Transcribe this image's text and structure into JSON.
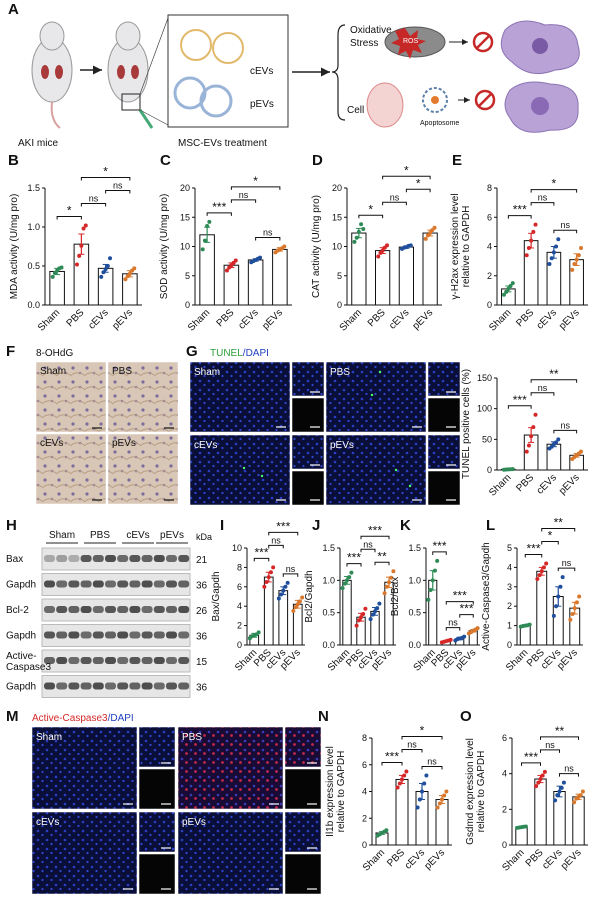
{
  "panel_letters": [
    "A",
    "B",
    "C",
    "D",
    "E",
    "F",
    "G",
    "H",
    "I",
    "J",
    "K",
    "L",
    "M",
    "N",
    "O"
  ],
  "schematic": {
    "mouse_label": "AKI mice",
    "treatment_label": "MSC-EVs treatment",
    "ev_labels": [
      "cEVs",
      "pEVs"
    ],
    "oxidative_stress": [
      "Oxidative",
      "Stress"
    ],
    "cell_death": "Cell death",
    "ros": "ROS",
    "apoptosome": "Apoptosome"
  },
  "micrographs_F": {
    "title": "8-OHdG",
    "labels": [
      "Sham",
      "PBS",
      "cEVs",
      "pEVs"
    ]
  },
  "micrographs_G": {
    "title": [
      "TUNEL",
      "/DAPI"
    ],
    "labels": [
      "Sham",
      "PBS",
      "cEVs",
      "pEVs"
    ]
  },
  "micrographs_M": {
    "title": [
      "Active-Caspase3",
      "/DAPI"
    ],
    "labels": [
      "Sham",
      "PBS",
      "cEVs",
      "pEVs"
    ]
  },
  "western_blot": {
    "lanes": [
      "Sham",
      "PBS",
      "cEVs",
      "pEVs"
    ],
    "unit": "kDa",
    "rows": [
      {
        "label": [
          "Bax"
        ],
        "kda": 21
      },
      {
        "label": [
          "Gapdh"
        ],
        "kda": 36
      },
      {
        "label": [
          "Bcl-2"
        ],
        "kda": 26
      },
      {
        "label": [
          "Gapdh"
        ],
        "kda": 36
      },
      {
        "label": [
          "Active-",
          "Caspase3"
        ],
        "kda": 15
      },
      {
        "label": [
          "Gapdh"
        ],
        "kda": 36
      }
    ]
  },
  "chart_data": [
    {
      "type": "bar",
      "ylabel": [
        "MDA activity (U/mg pro)"
      ],
      "categories": [
        "Sham",
        "PBS",
        "cEVs",
        "pEVs"
      ],
      "colors": [
        "#2e8b57",
        "#d62728",
        "#1f4e9c",
        "#d9782d"
      ],
      "values": [
        0.43,
        0.78,
        0.47,
        0.4
      ],
      "errors": [
        0.04,
        0.13,
        0.05,
        0.04
      ],
      "points": [
        [
          0.36,
          0.41,
          0.44,
          0.47,
          0.48
        ],
        [
          0.52,
          0.63,
          0.76,
          0.98,
          1.02
        ],
        [
          0.36,
          0.42,
          0.46,
          0.5,
          0.6
        ],
        [
          0.33,
          0.37,
          0.4,
          0.44,
          0.47
        ]
      ],
      "ylim": [
        0,
        1.5
      ],
      "yticks": [
        {
          "value": 0,
          "label": "0.0"
        },
        0.5,
        {
          "value": 1,
          "label": "1.0"
        },
        1.5
      ],
      "comparisons": [
        {
          "from": "Sham",
          "to": "PBS",
          "label": "*"
        },
        {
          "from": "PBS",
          "to": "cEVs",
          "label": "ns"
        },
        {
          "from": "cEVs",
          "to": "pEVs",
          "label": "ns"
        },
        {
          "from": "PBS",
          "to": "pEVs",
          "label": "*"
        }
      ]
    },
    {
      "type": "bar",
      "ylabel": [
        "SOD activity (U/mg pro)"
      ],
      "categories": [
        "Sham",
        "PBS",
        "cEVs",
        "pEVs"
      ],
      "colors": [
        "#2e8b57",
        "#d62728",
        "#1f4e9c",
        "#d9782d"
      ],
      "values": [
        12.0,
        6.8,
        7.7,
        9.5
      ],
      "errors": [
        1.3,
        0.4,
        0.2,
        0.3
      ],
      "points": [
        [
          9.5,
          11.0,
          13.5,
          14.2
        ],
        [
          5.9,
          6.4,
          6.8,
          7.2,
          7.6
        ],
        [
          7.3,
          7.5,
          7.7,
          7.9,
          8.1
        ],
        [
          9.0,
          9.3,
          9.5,
          9.7,
          10.0
        ]
      ],
      "ylim": [
        0,
        20
      ],
      "yticks": [
        0,
        5,
        10,
        15,
        20
      ],
      "comparisons": [
        {
          "from": "Sham",
          "to": "PBS",
          "label": "***"
        },
        {
          "from": "cEVs",
          "to": "pEVs",
          "label": "ns"
        },
        {
          "from": "PBS",
          "to": "cEVs",
          "label": "ns"
        },
        {
          "from": "PBS",
          "to": "pEVs",
          "label": "*"
        }
      ]
    },
    {
      "type": "bar",
      "ylabel": [
        "CAT activity (U/mg pro)"
      ],
      "categories": [
        "Sham",
        "PBS",
        "cEVs",
        "pEVs"
      ],
      "colors": [
        "#2e8b57",
        "#d62728",
        "#1f4e9c",
        "#d9782d"
      ],
      "values": [
        12.3,
        9.3,
        9.9,
        12.3
      ],
      "errors": [
        0.8,
        0.5,
        0.2,
        0.5
      ],
      "points": [
        [
          10.8,
          11.5,
          12.5,
          13.8,
          13.0
        ],
        [
          8.3,
          8.9,
          9.3,
          9.8,
          10.2
        ],
        [
          9.6,
          9.8,
          9.9,
          10.1,
          10.2
        ],
        [
          11.3,
          11.9,
          12.3,
          12.8,
          13.2
        ]
      ],
      "ylim": [
        0,
        20
      ],
      "yticks": [
        0,
        5,
        10,
        15,
        20
      ],
      "comparisons": [
        {
          "from": "Sham",
          "to": "PBS",
          "label": "*"
        },
        {
          "from": "PBS",
          "to": "cEVs",
          "label": "ns"
        },
        {
          "from": "cEVs",
          "to": "pEVs",
          "label": "*"
        },
        {
          "from": "PBS",
          "to": "pEVs",
          "label": "*"
        }
      ]
    },
    {
      "type": "bar",
      "ylabel": [
        "γ-H2ax expression level",
        "relative to GAPDH"
      ],
      "categories": [
        "Sham",
        "PBS",
        "cEVs",
        "pEVs"
      ],
      "colors": [
        "#2e8b57",
        "#d62728",
        "#1f4e9c",
        "#d9782d"
      ],
      "values": [
        1.1,
        4.4,
        3.6,
        3.1
      ],
      "errors": [
        0.2,
        0.5,
        0.4,
        0.4
      ],
      "points": [
        [
          0.7,
          0.9,
          1.1,
          1.3,
          1.5
        ],
        [
          3.4,
          3.9,
          4.4,
          5.0,
          5.5
        ],
        [
          2.8,
          3.2,
          3.6,
          4.0,
          4.5
        ],
        [
          2.4,
          2.8,
          3.1,
          3.4,
          3.9
        ]
      ],
      "ylim": [
        0,
        8
      ],
      "yticks": [
        0,
        2,
        4,
        6,
        8
      ],
      "comparisons": [
        {
          "from": "Sham",
          "to": "PBS",
          "label": "***"
        },
        {
          "from": "cEVs",
          "to": "pEVs",
          "label": "ns"
        },
        {
          "from": "PBS",
          "to": "cEVs",
          "label": "ns"
        },
        {
          "from": "PBS",
          "to": "pEVs",
          "label": "*"
        }
      ]
    },
    {
      "type": "bar",
      "ylabel": [
        "TUNEL positive cells (%)"
      ],
      "categories": [
        "Sham",
        "PBS",
        "cEVs",
        "pEVs"
      ],
      "colors": [
        "#2e8b57",
        "#d62728",
        "#1f4e9c",
        "#d9782d"
      ],
      "values": [
        1,
        57,
        42,
        24
      ],
      "errors": [
        0.5,
        12,
        4,
        3
      ],
      "points": [
        [
          0.5,
          0.8,
          1,
          1.2,
          1.5
        ],
        [
          30,
          40,
          55,
          70,
          90
        ],
        [
          35,
          38,
          42,
          45,
          50
        ],
        [
          18,
          21,
          24,
          27,
          30
        ]
      ],
      "ylim": [
        0,
        150
      ],
      "yticks": [
        0,
        50,
        100,
        150
      ],
      "comparisons": [
        {
          "from": "Sham",
          "to": "PBS",
          "label": "***"
        },
        {
          "from": "cEVs",
          "to": "pEVs",
          "label": "ns"
        },
        {
          "from": "PBS",
          "to": "cEVs",
          "label": "ns"
        },
        {
          "from": "PBS",
          "to": "pEVs",
          "label": "**"
        }
      ]
    },
    {
      "type": "bar",
      "ylabel": [
        "Bax/Gapdh"
      ],
      "categories": [
        "Sham",
        "PBS",
        "cEVs",
        "pEVs"
      ],
      "colors": [
        "#2e8b57",
        "#d62728",
        "#1f4e9c",
        "#d9782d"
      ],
      "values": [
        1.0,
        7.0,
        5.6,
        4.2
      ],
      "errors": [
        0.2,
        0.5,
        0.4,
        0.4
      ],
      "points": [
        [
          0.7,
          0.9,
          1.0,
          1.1,
          1.3
        ],
        [
          6.0,
          6.5,
          7.0,
          7.5,
          8.0
        ],
        [
          4.8,
          5.2,
          5.6,
          6.0,
          6.4
        ],
        [
          3.5,
          3.9,
          4.2,
          4.5,
          4.9
        ]
      ],
      "ylim": [
        0,
        10
      ],
      "yticks": [
        0,
        2,
        4,
        6,
        8,
        10
      ],
      "comparisons": [
        {
          "from": "Sham",
          "to": "PBS",
          "label": "***"
        },
        {
          "from": "cEVs",
          "to": "pEVs",
          "label": "ns"
        },
        {
          "from": "PBS",
          "to": "cEVs",
          "label": "ns"
        },
        {
          "from": "PBS",
          "to": "pEVs",
          "label": "***"
        }
      ]
    },
    {
      "type": "bar",
      "ylabel": [
        "Bcl2/Gapdh"
      ],
      "categories": [
        "Sham",
        "PBS",
        "cEVs",
        "pEVs"
      ],
      "colors": [
        "#2e8b57",
        "#d62728",
        "#1f4e9c",
        "#d9782d"
      ],
      "values": [
        1.0,
        0.43,
        0.52,
        0.97
      ],
      "errors": [
        0.06,
        0.06,
        0.06,
        0.08
      ],
      "points": [
        [
          0.88,
          0.95,
          1.0,
          1.05,
          1.12
        ],
        [
          0.3,
          0.38,
          0.43,
          0.48,
          0.56
        ],
        [
          0.4,
          0.47,
          0.52,
          0.57,
          0.64
        ],
        [
          0.8,
          0.9,
          0.97,
          1.04,
          1.14
        ]
      ],
      "ylim": [
        0,
        1.5
      ],
      "yticks": [
        {
          "value": 0,
          "label": "0.0"
        },
        0.5,
        {
          "value": 1,
          "label": "1.0"
        },
        1.5
      ],
      "comparisons": [
        {
          "from": "Sham",
          "to": "PBS",
          "label": "***"
        },
        {
          "from": "cEVs",
          "to": "pEVs",
          "label": "**"
        },
        {
          "from": "PBS",
          "to": "cEVs",
          "label": "ns"
        },
        {
          "from": "PBS",
          "to": "pEVs",
          "label": "***"
        }
      ]
    },
    {
      "type": "bar",
      "ylabel": [
        "Bcl2/Bax"
      ],
      "categories": [
        "Sham",
        "PBS",
        "cEVs",
        "pEVs"
      ],
      "colors": [
        "#2e8b57",
        "#d62728",
        "#1f4e9c",
        "#d9782d"
      ],
      "values": [
        1.0,
        0.06,
        0.1,
        0.22
      ],
      "errors": [
        0.15,
        0.01,
        0.02,
        0.02
      ],
      "points": [
        [
          0.7,
          0.85,
          1.0,
          1.15,
          1.3
        ],
        [
          0.04,
          0.05,
          0.06,
          0.07,
          0.08
        ],
        [
          0.07,
          0.09,
          0.1,
          0.11,
          0.13
        ],
        [
          0.18,
          0.2,
          0.22,
          0.24,
          0.26
        ]
      ],
      "ylim": [
        0,
        1.5
      ],
      "yticks": [
        {
          "value": 0,
          "label": "0.0"
        },
        0.5,
        {
          "value": 1,
          "label": "1.0"
        },
        1.5
      ],
      "comparisons": [
        {
          "from": "PBS",
          "to": "cEVs",
          "label": "ns"
        },
        {
          "from": "cEVs",
          "to": "pEVs",
          "label": "***"
        },
        {
          "from": "PBS",
          "to": "pEVs",
          "label": "***"
        },
        {
          "from": "Sham",
          "to": "PBS",
          "label": "***"
        }
      ]
    },
    {
      "type": "bar",
      "ylabel": [
        "Active-Caspase3/Gapdh"
      ],
      "categories": [
        "Sham",
        "PBS",
        "cEVs",
        "pEVs"
      ],
      "colors": [
        "#2e8b57",
        "#d62728",
        "#1f4e9c",
        "#d9782d"
      ],
      "values": [
        1.0,
        3.8,
        2.5,
        1.9
      ],
      "errors": [
        0.05,
        0.2,
        0.5,
        0.3
      ],
      "points": [
        [
          0.95,
          0.98,
          1.0,
          1.02,
          1.05
        ],
        [
          3.4,
          3.6,
          3.8,
          4.0,
          4.2
        ],
        [
          1.5,
          2.0,
          2.5,
          3.0,
          3.5
        ],
        [
          1.3,
          1.6,
          1.9,
          2.2,
          2.5
        ]
      ],
      "ylim": [
        0,
        5
      ],
      "yticks": [
        0,
        1,
        2,
        3,
        4,
        5
      ],
      "comparisons": [
        {
          "from": "Sham",
          "to": "PBS",
          "label": "***"
        },
        {
          "from": "cEVs",
          "to": "pEVs",
          "label": "ns"
        },
        {
          "from": "PBS",
          "to": "cEVs",
          "label": "*"
        },
        {
          "from": "PBS",
          "to": "pEVs",
          "label": "**"
        }
      ]
    },
    {
      "type": "bar",
      "ylabel": [
        "Il1b expression level",
        "relative to GAPDH"
      ],
      "categories": [
        "Sham",
        "PBS",
        "cEVs",
        "pEVs"
      ],
      "colors": [
        "#2e8b57",
        "#d62728",
        "#1f4e9c",
        "#d9782d"
      ],
      "values": [
        0.9,
        4.9,
        4.0,
        3.4
      ],
      "errors": [
        0.1,
        0.3,
        0.6,
        0.3
      ],
      "points": [
        [
          0.7,
          0.8,
          0.9,
          1.0,
          1.1
        ],
        [
          4.3,
          4.6,
          4.9,
          5.2,
          5.5
        ],
        [
          2.8,
          3.4,
          4.0,
          4.6,
          5.2
        ],
        [
          2.8,
          3.1,
          3.4,
          3.7,
          4.0
        ]
      ],
      "ylim": [
        0,
        8
      ],
      "yticks": [
        0,
        2,
        4,
        6,
        8
      ],
      "comparisons": [
        {
          "from": "Sham",
          "to": "PBS",
          "label": "***"
        },
        {
          "from": "cEVs",
          "to": "pEVs",
          "label": "ns"
        },
        {
          "from": "PBS",
          "to": "cEVs",
          "label": "ns"
        },
        {
          "from": "PBS",
          "to": "pEVs",
          "label": "*"
        }
      ]
    },
    {
      "type": "bar",
      "ylabel": [
        "Gsdmd expression level",
        "relative to GAPDH"
      ],
      "categories": [
        "Sham",
        "PBS",
        "cEVs",
        "pEVs"
      ],
      "colors": [
        "#2e8b57",
        "#d62728",
        "#1f4e9c",
        "#d9782d"
      ],
      "values": [
        1.0,
        3.7,
        3.0,
        2.7
      ],
      "errors": [
        0.03,
        0.2,
        0.3,
        0.15
      ],
      "points": [
        [
          0.96,
          0.98,
          1.0,
          1.02,
          1.04
        ],
        [
          3.3,
          3.5,
          3.7,
          3.9,
          4.1
        ],
        [
          2.5,
          2.8,
          3.0,
          3.2,
          3.5
        ],
        [
          2.4,
          2.6,
          2.7,
          2.8,
          3.0
        ]
      ],
      "ylim": [
        0,
        6
      ],
      "yticks": [
        0,
        2,
        4,
        6
      ],
      "comparisons": [
        {
          "from": "Sham",
          "to": "PBS",
          "label": "***"
        },
        {
          "from": "cEVs",
          "to": "pEVs",
          "label": "ns"
        },
        {
          "from": "PBS",
          "to": "cEVs",
          "label": "ns"
        },
        {
          "from": "PBS",
          "to": "pEVs",
          "label": "**"
        }
      ]
    }
  ]
}
